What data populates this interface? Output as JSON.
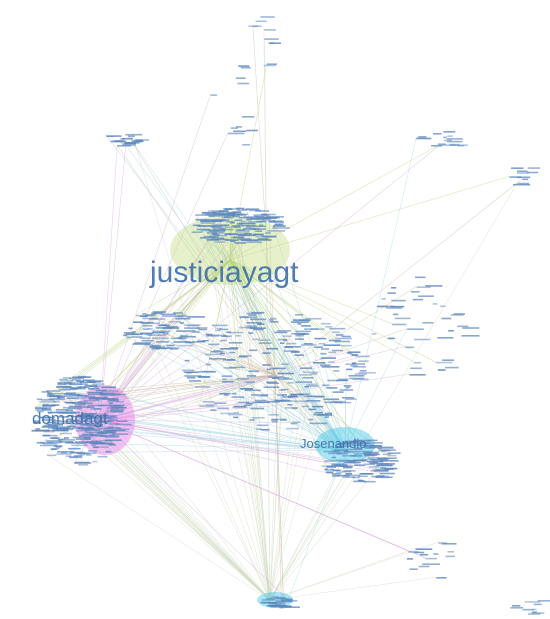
{
  "nodes": [
    {
      "label": "justiciayagt"
    },
    {
      "label": "domadagt"
    },
    {
      "label": "Josenandio"
    }
  ]
}
